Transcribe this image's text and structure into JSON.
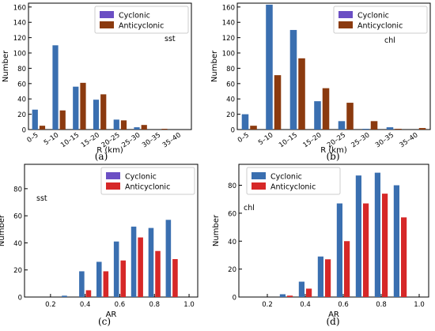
{
  "colors": {
    "cyclonic": "#3a6fb0",
    "anticyclonic": "#8b3a0f",
    "anticyclonic_alt": "#d62828",
    "cyclonic_legend": "#6b4fc4"
  },
  "chart_data": [
    {
      "panel": "a",
      "caption": "(a)",
      "type": "bar",
      "annotation": "sst",
      "xlabel": "R (km)",
      "ylabel": "Number",
      "ylim": [
        0,
        165
      ],
      "yticks": [
        "0",
        "20",
        "40",
        "60",
        "80",
        "100",
        "120",
        "140",
        "160"
      ],
      "categories": [
        "0–5",
        "5–10",
        "10–15",
        "15–20",
        "20–25",
        "25–30",
        "30–35",
        "35–40"
      ],
      "anti_color": "anticyclonic",
      "legend": "top-right",
      "series": [
        {
          "name": "Cyclonic",
          "values": [
            26,
            110,
            56,
            39,
            13,
            3,
            0,
            0
          ]
        },
        {
          "name": "Anticyclonic",
          "values": [
            5,
            25,
            61,
            46,
            12,
            6,
            1,
            0
          ]
        }
      ]
    },
    {
      "panel": "b",
      "caption": "(b)",
      "type": "bar",
      "annotation": "chl",
      "xlabel": "R (km)",
      "ylabel": "Number",
      "ylim": [
        0,
        165
      ],
      "yticks": [
        "0",
        "20",
        "40",
        "60",
        "80",
        "100",
        "120",
        "140",
        "160"
      ],
      "categories": [
        "0–5",
        "5–10",
        "10–15",
        "15–20",
        "20–25",
        "25–30",
        "30–35",
        "35–40"
      ],
      "anti_color": "anticyclonic",
      "legend": "top-right",
      "series": [
        {
          "name": "Cyclonic",
          "values": [
            20,
            163,
            130,
            37,
            11,
            1,
            3,
            0
          ]
        },
        {
          "name": "Anticyclonic",
          "values": [
            5,
            71,
            93,
            54,
            35,
            11,
            1,
            2
          ]
        }
      ]
    },
    {
      "panel": "c",
      "caption": "(c)",
      "type": "bar",
      "annotation": "sst",
      "xlabel": "AR",
      "ylabel": "Number",
      "ylim": [
        0,
        98
      ],
      "yticks": [
        "0",
        "20",
        "40",
        "60",
        "80"
      ],
      "xtick_labels": [
        "0.2",
        "0.4",
        "0.6",
        "0.8",
        "1.0"
      ],
      "xtick_values": [
        0.2,
        0.4,
        0.6,
        0.8,
        1.0
      ],
      "xlim": [
        0.05,
        1.05
      ],
      "x": [
        0.3,
        0.4,
        0.5,
        0.6,
        0.7,
        0.8,
        0.9
      ],
      "anti_color": "anticyclonic_alt",
      "legend": "top-right",
      "series": [
        {
          "name": "Cyclonic",
          "values": [
            1,
            19,
            26,
            41,
            52,
            51,
            57
          ]
        },
        {
          "name": "Anticyclonic",
          "values": [
            0,
            5,
            19,
            27,
            44,
            34,
            28
          ]
        }
      ]
    },
    {
      "panel": "d",
      "caption": "(d)",
      "type": "bar",
      "annotation": "chl",
      "xlabel": "AR",
      "ylabel": "Number",
      "ylim": [
        0,
        95
      ],
      "yticks": [
        "0",
        "20",
        "40",
        "60",
        "80"
      ],
      "xtick_labels": [
        "0.2",
        "0.4",
        "0.6",
        "0.8",
        "1.0"
      ],
      "xtick_values": [
        0.2,
        0.4,
        0.6,
        0.8,
        1.0
      ],
      "xlim": [
        0.05,
        1.05
      ],
      "x": [
        0.3,
        0.4,
        0.5,
        0.6,
        0.7,
        0.8,
        0.9
      ],
      "anti_color": "anticyclonic_alt",
      "legend": "top-left",
      "series": [
        {
          "name": "Cyclonic",
          "values": [
            2,
            11,
            29,
            67,
            87,
            89,
            80
          ]
        },
        {
          "name": "Anticyclonic",
          "values": [
            1,
            6,
            27,
            40,
            67,
            74,
            57
          ]
        }
      ]
    }
  ]
}
